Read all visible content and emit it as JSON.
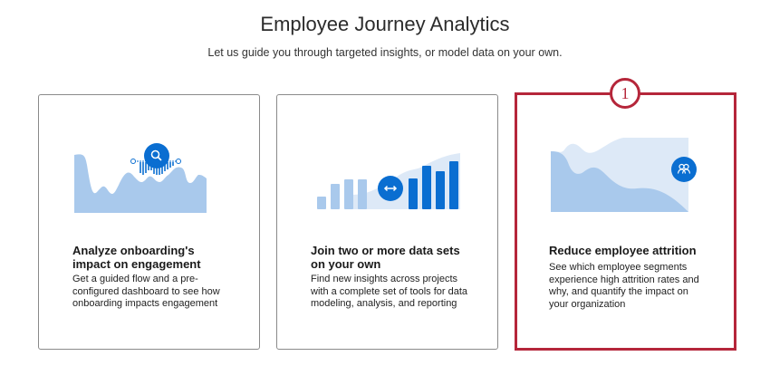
{
  "header": {
    "title": "Employee Journey Analytics",
    "subtitle": "Let us guide you through targeted insights, or model data on your own."
  },
  "cards": [
    {
      "title": "Analyze onboarding's impact on engagement",
      "description": "Get a guided flow and a pre-configured dashboard to see how onboarding impacts engagement",
      "icon": "search-icon"
    },
    {
      "title": "Join two or more data sets on your own",
      "description": "Find new insights across projects with a complete set of tools for data modeling, analysis, and reporting",
      "icon": "arrows-horizontal-icon"
    },
    {
      "title": "Reduce employee attrition",
      "description": "See which employee segments experience high attrition rates and why, and quantify the impact on your organization",
      "icon": "users-icon",
      "selected": true
    }
  ],
  "annotation": {
    "label": "1"
  },
  "colors": {
    "accent": "#0a6ed1",
    "highlight": "#b5263a",
    "light": "#a9c9ec",
    "pale": "#dde9f7"
  }
}
